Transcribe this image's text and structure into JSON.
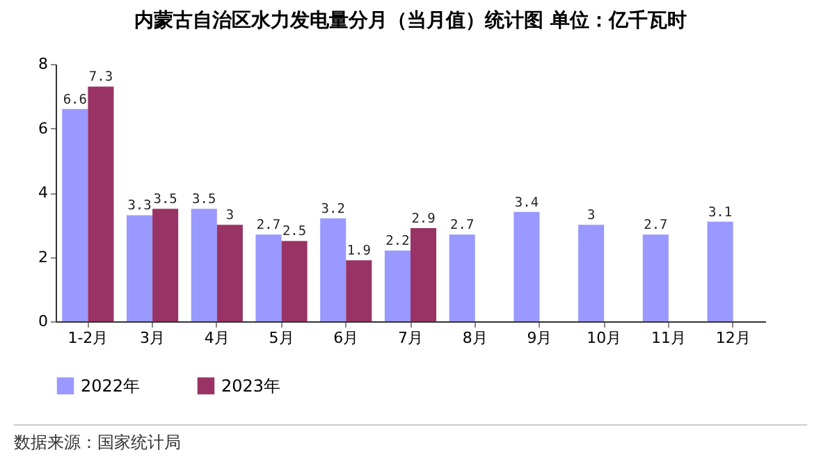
{
  "chart_data": {
    "type": "bar",
    "title": "内蒙古自治区水力发电量分月（当月值）统计图 单位：亿千瓦时",
    "categories": [
      "1-2月",
      "3月",
      "4月",
      "5月",
      "6月",
      "7月",
      "8月",
      "9月",
      "10月",
      "11月",
      "12月"
    ],
    "series": [
      {
        "name": "2022年",
        "color": "#9999ff",
        "values": [
          6.6,
          3.3,
          3.5,
          2.7,
          3.2,
          2.2,
          2.7,
          3.4,
          3,
          2.7,
          3.1
        ]
      },
      {
        "name": "2023年",
        "color": "#993366",
        "values": [
          7.3,
          3.5,
          3,
          2.5,
          1.9,
          2.9,
          null,
          null,
          null,
          null,
          null
        ]
      }
    ],
    "ylim": [
      0,
      8
    ],
    "yticks": [
      0,
      2,
      4,
      6,
      8
    ],
    "data_labels": true,
    "legend": "bottom",
    "annotations": [
      "数据来源：国家统计局"
    ]
  }
}
